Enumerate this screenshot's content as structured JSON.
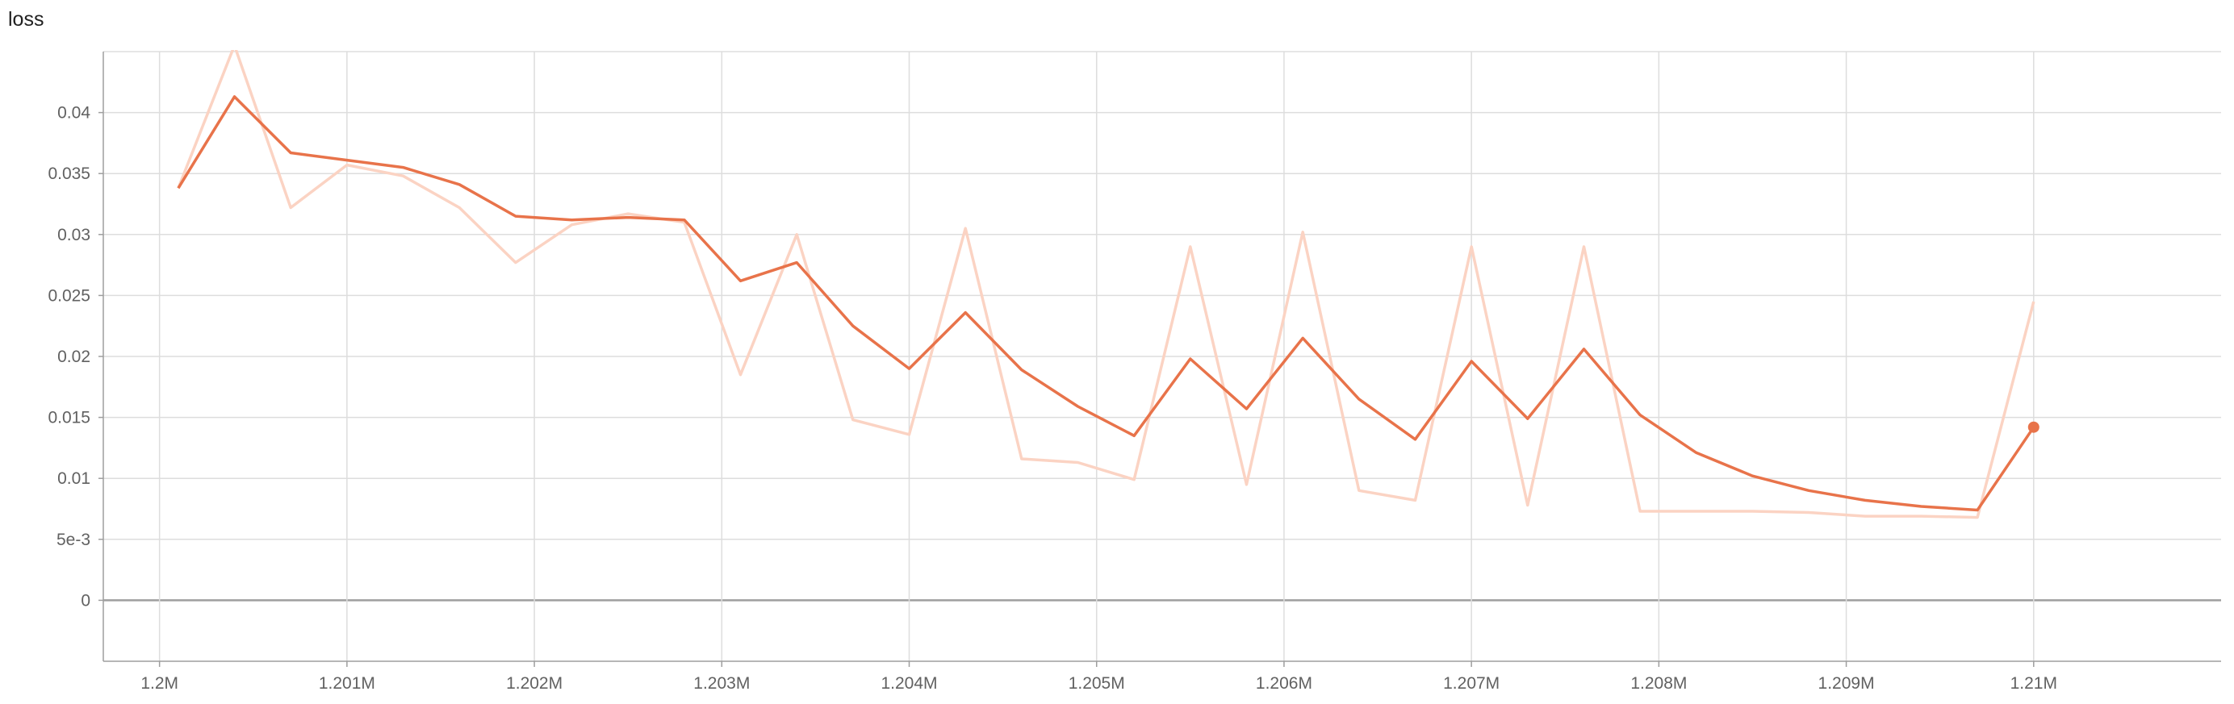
{
  "chart_data": {
    "type": "line",
    "title": "loss",
    "xlabel": "",
    "ylabel": "",
    "xlim": [
      1199700,
      1211000
    ],
    "ylim": [
      -0.005,
      0.045
    ],
    "x_ticks": [
      1200000,
      1201000,
      1202000,
      1203000,
      1204000,
      1205000,
      1206000,
      1207000,
      1208000,
      1209000,
      1210000
    ],
    "x_tick_labels": [
      "1.2M",
      "1.201M",
      "1.202M",
      "1.203M",
      "1.204M",
      "1.205M",
      "1.206M",
      "1.207M",
      "1.208M",
      "1.209M",
      "1.21M"
    ],
    "y_ticks": [
      0,
      0.005,
      0.01,
      0.015,
      0.02,
      0.025,
      0.03,
      0.035,
      0.04
    ],
    "y_tick_labels": [
      "0",
      "5e-3",
      "0.01",
      "0.015",
      "0.02",
      "0.025",
      "0.03",
      "0.035",
      "0.04"
    ],
    "grid": true,
    "colors": {
      "smoothed": "#e8734a",
      "raw": "#fbd3c3",
      "grid": "#dddddd",
      "zero_line": "#9e9e9e"
    },
    "x": [
      1200100,
      1200400,
      1200700,
      1201000,
      1201300,
      1201600,
      1201900,
      1202200,
      1202500,
      1202800,
      1203100,
      1203400,
      1203700,
      1204000,
      1204300,
      1204600,
      1204900,
      1205200,
      1205500,
      1205800,
      1206100,
      1206400,
      1206700,
      1207000,
      1207300,
      1207600,
      1207900,
      1208200,
      1208500,
      1208800,
      1209100,
      1209400,
      1209700,
      1210000
    ],
    "series": [
      {
        "values": [
          0.0338,
          0.0455,
          0.0322,
          0.0357,
          0.0348,
          0.0322,
          0.0277,
          0.0308,
          0.0317,
          0.031,
          0.0185,
          0.03,
          0.0148,
          0.0136,
          0.0305,
          0.0116,
          0.0113,
          0.0099,
          0.029,
          0.0095,
          0.0302,
          0.009,
          0.0082,
          0.029,
          0.0078,
          0.029,
          0.0073,
          0.0073,
          0.0073,
          0.0072,
          0.0069,
          0.0069,
          0.0068,
          0.0245
        ]
      },
      {
        "values": [
          0.0338,
          0.0413,
          0.0367,
          0.0361,
          0.0355,
          0.0341,
          0.0315,
          0.0312,
          0.0314,
          0.0312,
          0.0262,
          0.0277,
          0.0225,
          0.019,
          0.0236,
          0.0189,
          0.0159,
          0.0135,
          0.0198,
          0.0157,
          0.0215,
          0.0165,
          0.0132,
          0.0196,
          0.0149,
          0.0206,
          0.0152,
          0.0121,
          0.0102,
          0.009,
          0.0082,
          0.0077,
          0.0074,
          0.0142
        ]
      }
    ]
  }
}
